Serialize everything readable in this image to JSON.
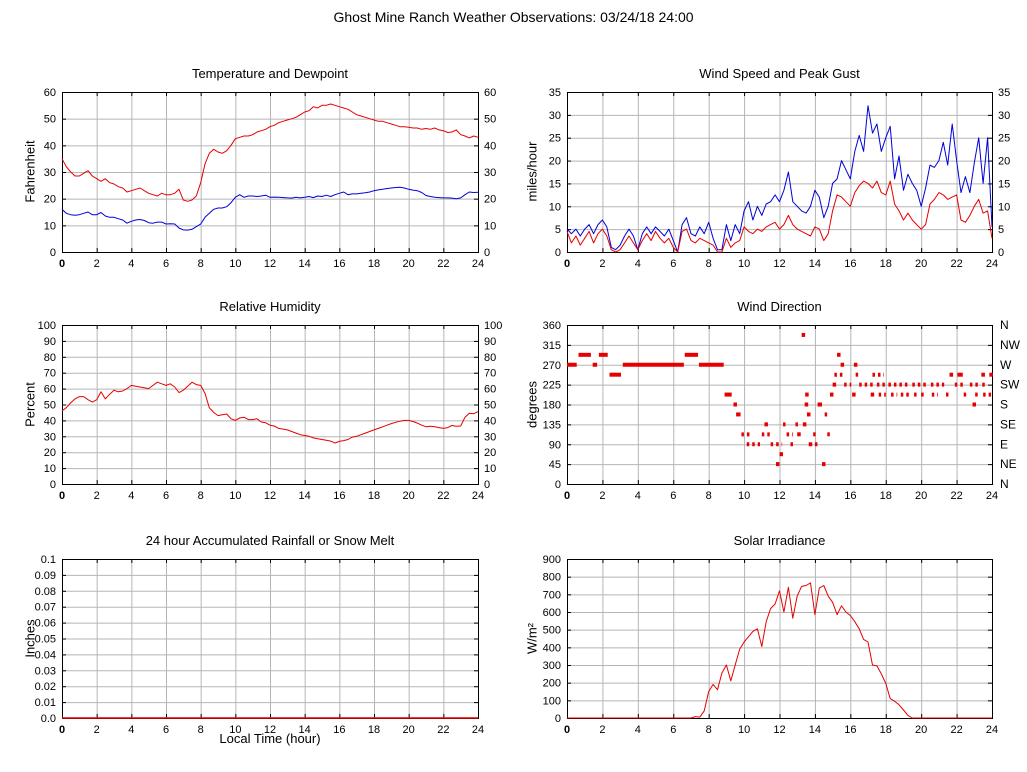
{
  "title": "Ghost Mine Ranch Weather Observations: 03/24/18 24:00",
  "colors": {
    "red": "#e60000",
    "blue": "#0000dd",
    "grid": "#b5b5b5",
    "frame": "#000000"
  },
  "x_axis": {
    "lim": [
      0,
      24
    ],
    "ticks": [
      0,
      2,
      4,
      6,
      8,
      10,
      12,
      14,
      16,
      18,
      20,
      22,
      24
    ]
  },
  "chart_data": [
    {
      "id": "temperature-dewpoint",
      "type": "line",
      "title": "Temperature and Dewpoint",
      "ylabel": "Fahrenheit",
      "ylim": [
        0,
        60
      ],
      "yticks": [
        0,
        10,
        20,
        30,
        40,
        50,
        60
      ],
      "mirror": true,
      "series": [
        {
          "name": "temperature",
          "color": "#e60000",
          "x0": 0,
          "dx": 0.25,
          "values": [
            35,
            32,
            30,
            28.5,
            28.5,
            29.5,
            30.5,
            28.5,
            27.5,
            26.5,
            27.5,
            26,
            25.5,
            24.5,
            24,
            22.5,
            23,
            23.5,
            24,
            23,
            22,
            21.5,
            21,
            22,
            21.5,
            21.5,
            22,
            23.5,
            19.5,
            19,
            19.5,
            21,
            26,
            33,
            37,
            38.5,
            37.5,
            37,
            38,
            40,
            42.5,
            43,
            43.5,
            43.5,
            44,
            45,
            45.5,
            46,
            47,
            47.5,
            48.5,
            49,
            49.5,
            50,
            50.5,
            51.5,
            52.5,
            53,
            54.5,
            54,
            55,
            55,
            55.5,
            55,
            54.5,
            54,
            53.5,
            52.5,
            51.5,
            51,
            50.5,
            50,
            49.5,
            49,
            49,
            48.5,
            48,
            47.5,
            47,
            47,
            46.8,
            46.5,
            46.5,
            46,
            46.3,
            46,
            46.5,
            45.8,
            45.5,
            44.8,
            45,
            45.8,
            44,
            43.5,
            42.8,
            43.5,
            43
          ]
        },
        {
          "name": "dewpoint",
          "color": "#0000dd",
          "x0": 0,
          "dx": 0.25,
          "values": [
            16,
            14.5,
            14,
            13.8,
            14,
            14.5,
            15,
            14,
            14,
            14.8,
            13.5,
            13,
            13,
            12.5,
            12,
            10.8,
            11.5,
            12,
            12.2,
            11.8,
            11,
            10.8,
            11.2,
            11.2,
            10.5,
            10.6,
            10.5,
            9,
            8.3,
            8.2,
            8.5,
            9.5,
            10.5,
            13,
            14.5,
            16,
            16.5,
            16.5,
            17,
            18.5,
            20.5,
            21.5,
            20.5,
            21,
            21,
            20.8,
            21,
            21.3,
            20.5,
            20.6,
            20.5,
            20.4,
            20.3,
            20.2,
            20.5,
            20.3,
            20.5,
            20.8,
            20.4,
            21,
            20.8,
            21.3,
            20.8,
            21.5,
            22,
            22.5,
            21.5,
            21.8,
            21.8,
            22,
            22.2,
            22.5,
            23,
            23.3,
            23.5,
            23.8,
            24,
            24.2,
            24.3,
            24,
            23.5,
            23.2,
            23,
            22.3,
            21.2,
            20.8,
            20.5,
            20.4,
            20.3,
            20.3,
            20.2,
            20,
            20.3,
            21.5,
            22.5,
            22.3,
            22.4
          ]
        }
      ]
    },
    {
      "id": "wind-speed-gust",
      "type": "line",
      "title": "Wind Speed and Peak Gust",
      "ylabel": "miles/hour",
      "ylim": [
        0,
        35
      ],
      "yticks": [
        0,
        5,
        10,
        15,
        20,
        25,
        30,
        35
      ],
      "mirror": true,
      "series": [
        {
          "name": "peak-gust",
          "color": "#0000dd",
          "x0": 0,
          "dx": 0.25,
          "values": [
            5,
            4,
            5,
            3.5,
            5,
            6,
            4,
            6,
            7,
            5.5,
            1,
            0.5,
            1.5,
            3.5,
            5,
            3.5,
            0.5,
            4,
            5.5,
            4,
            5.5,
            4.5,
            3.5,
            5,
            2.5,
            0,
            6,
            7.5,
            4,
            3.5,
            5.5,
            4,
            6.5,
            3,
            0.5,
            0.5,
            6,
            2.5,
            6,
            4,
            9,
            11,
            7,
            10,
            8,
            10.5,
            11,
            12.5,
            11,
            13.5,
            17.5,
            11,
            10,
            9,
            8.5,
            10,
            13.5,
            12,
            7.5,
            10,
            15,
            16,
            20,
            18,
            16,
            22,
            25.5,
            22,
            32,
            26,
            28,
            22,
            25,
            27.5,
            16,
            21,
            13.5,
            17,
            15,
            13.5,
            10,
            14,
            19,
            18.5,
            20,
            24,
            19,
            28,
            20,
            13,
            16.5,
            13,
            19.5,
            25,
            15,
            25,
            5.5
          ]
        },
        {
          "name": "wind-speed",
          "color": "#e60000",
          "x0": 0,
          "dx": 0.25,
          "values": [
            4.5,
            2,
            3.5,
            1.5,
            3,
            4.5,
            2,
            4,
            5,
            3.5,
            0.5,
            0,
            0.5,
            2,
            3.5,
            2,
            0.5,
            2.5,
            4,
            2.5,
            4.5,
            3,
            2,
            3,
            1,
            0,
            4.5,
            5,
            2.5,
            2,
            3,
            2.5,
            2,
            1.5,
            0,
            0,
            3,
            1,
            2,
            2.5,
            5.5,
            4.5,
            4,
            5,
            4.5,
            5.5,
            6,
            6.5,
            5,
            6,
            8,
            6,
            5,
            4.5,
            4,
            3.5,
            5.5,
            5,
            2.5,
            4,
            9,
            12.5,
            12,
            11,
            10,
            13,
            14.5,
            15.5,
            15,
            14,
            15.5,
            13,
            12.5,
            15.5,
            10.5,
            9,
            7,
            8.5,
            7,
            6,
            5,
            6,
            10.5,
            11.5,
            13,
            12.5,
            11.5,
            12,
            12.5,
            7,
            6.5,
            8,
            10,
            11.5,
            8.5,
            9,
            3
          ]
        }
      ]
    },
    {
      "id": "relative-humidity",
      "type": "line",
      "title": "Relative Humidity",
      "ylabel": "Percent",
      "ylim": [
        0,
        100
      ],
      "yticks": [
        0,
        10,
        20,
        30,
        40,
        50,
        60,
        70,
        80,
        90,
        100
      ],
      "mirror": true,
      "series": [
        {
          "name": "humidity",
          "color": "#e60000",
          "x0": 0,
          "dx": 0.25,
          "values": [
            46,
            48,
            51,
            53.5,
            55,
            55,
            53,
            51.5,
            53,
            58,
            53.5,
            56.5,
            59,
            58,
            58.5,
            60,
            62,
            61.5,
            61,
            60.5,
            60,
            62,
            64,
            63,
            62,
            63,
            61,
            57.5,
            59,
            61.5,
            64,
            62.5,
            62,
            57,
            48,
            45,
            43,
            43.5,
            44,
            41,
            40,
            41.5,
            42,
            40.5,
            40.5,
            41,
            39,
            38.5,
            37,
            36.5,
            35,
            34.5,
            34,
            33,
            32,
            31,
            30.5,
            30,
            29,
            28.5,
            28,
            27.5,
            27,
            25.8,
            26.8,
            27.3,
            28,
            29.5,
            30,
            31,
            32,
            33,
            34,
            35,
            36,
            37,
            38,
            38.8,
            39.5,
            40,
            40,
            39.3,
            38.3,
            37,
            36,
            36.3,
            36,
            35.5,
            35,
            35.5,
            36.8,
            36.3,
            36.5,
            42,
            44.5,
            44.2,
            45.5
          ]
        }
      ]
    },
    {
      "id": "wind-direction",
      "type": "scatter",
      "title": "Wind Direction",
      "ylabel": "degrees",
      "ylim": [
        0,
        360
      ],
      "yticks": [
        0,
        45,
        90,
        135,
        180,
        225,
        270,
        315,
        360
      ],
      "right_labels": [
        "N",
        "NE",
        "E",
        "SE",
        "S",
        "SW",
        "W",
        "NW",
        "N"
      ],
      "mirror": false,
      "marker_color": "#e60000",
      "runs": [
        [
          0.0,
          0.55,
          270
        ],
        [
          0.65,
          1.35,
          292.5
        ],
        [
          1.45,
          1.7,
          270
        ],
        [
          1.8,
          2.3,
          292.5
        ],
        [
          2.4,
          3.05,
          247.5
        ],
        [
          3.15,
          6.6,
          270
        ],
        [
          6.65,
          7.4,
          292.5
        ],
        [
          7.45,
          8.85,
          270
        ],
        [
          8.9,
          9.3,
          202.5
        ],
        [
          9.4,
          9.45,
          180
        ],
        [
          9.55,
          9.8,
          157.5
        ],
        [
          9.85,
          10.45,
          112.5,
          1
        ],
        [
          10.15,
          10.9,
          90,
          1
        ],
        [
          11.0,
          11.45,
          112.5,
          1
        ],
        [
          11.15,
          11.2,
          135
        ],
        [
          11.5,
          12.15,
          90,
          1
        ],
        [
          11.8,
          11.83,
          45
        ],
        [
          12.0,
          12.03,
          67.5
        ],
        [
          12.2,
          12.5,
          135,
          1
        ],
        [
          12.4,
          12.75,
          112.5,
          1
        ],
        [
          12.62,
          12.85,
          90,
          1
        ],
        [
          12.9,
          13.2,
          135,
          1
        ],
        [
          13.0,
          13.12,
          112.5
        ],
        [
          13.25,
          13.28,
          337.5
        ],
        [
          13.32,
          13.5,
          135
        ],
        [
          13.42,
          13.62,
          180
        ],
        [
          13.45,
          13.48,
          202.5
        ],
        [
          13.55,
          13.7,
          157.5
        ],
        [
          13.65,
          13.68,
          90
        ],
        [
          13.9,
          14.12,
          112.5,
          1
        ],
        [
          14.0,
          14.22,
          90,
          1
        ],
        [
          14.15,
          14.4,
          180
        ],
        [
          14.4,
          14.5,
          45
        ],
        [
          14.55,
          14.72,
          157.5,
          1
        ],
        [
          14.7,
          14.9,
          112.5,
          1
        ],
        [
          14.85,
          14.88,
          202.5
        ],
        [
          15.0,
          15.03,
          225
        ],
        [
          15.1,
          15.6,
          247.5,
          1
        ],
        [
          15.25,
          15.28,
          292.5
        ],
        [
          15.45,
          15.48,
          270
        ],
        [
          15.65,
          16.05,
          225,
          1
        ],
        [
          16.1,
          16.13,
          202.5
        ],
        [
          16.2,
          16.23,
          270
        ],
        [
          16.3,
          16.6,
          247.5,
          1
        ],
        [
          16.5,
          17.4,
          225,
          1
        ],
        [
          17.15,
          17.18,
          202.5
        ],
        [
          17.25,
          17.9,
          247.5,
          1
        ],
        [
          17.5,
          18.05,
          225,
          1
        ],
        [
          17.6,
          18.0,
          202.5,
          1
        ],
        [
          18.15,
          19.3,
          225,
          1
        ],
        [
          18.3,
          18.65,
          202.5,
          1
        ],
        [
          18.85,
          19.3,
          202.5,
          1
        ],
        [
          19.5,
          20.4,
          225,
          1
        ],
        [
          19.6,
          19.9,
          202.5,
          1
        ],
        [
          20.0,
          20.3,
          202.5,
          1
        ],
        [
          20.55,
          21.3,
          225,
          1
        ],
        [
          20.6,
          20.95,
          202.5,
          1
        ],
        [
          21.4,
          21.7,
          202.5,
          1
        ],
        [
          21.6,
          21.8,
          247.5
        ],
        [
          21.9,
          22.5,
          225,
          1
        ],
        [
          22.05,
          22.35,
          247.5
        ],
        [
          22.4,
          22.7,
          202.5,
          1
        ],
        [
          22.75,
          23.3,
          225,
          1
        ],
        [
          22.9,
          23.0,
          180
        ],
        [
          23.05,
          23.3,
          202.5,
          1
        ],
        [
          23.4,
          23.6,
          247.5
        ],
        [
          23.45,
          23.75,
          225,
          1
        ],
        [
          23.5,
          23.95,
          202.5,
          1
        ],
        [
          23.85,
          24.0,
          247.5
        ]
      ]
    },
    {
      "id": "rainfall",
      "type": "line",
      "title": "24 hour Accumulated Rainfall or Snow Melt",
      "ylabel": "Inches",
      "xlabel": "Local Time (hour)",
      "ylim": [
        0,
        0.1
      ],
      "yticks": [
        0,
        0.01,
        0.02,
        0.03,
        0.04,
        0.05,
        0.06,
        0.07,
        0.08,
        0.09,
        0.1
      ],
      "ytick_labels": [
        "0.0",
        "0.01",
        "0.02",
        "0.03",
        "0.04",
        "0.05",
        "0.06",
        "0.07",
        "0.08",
        "0.09",
        "0.1"
      ],
      "mirror": false,
      "series": [
        {
          "name": "accumulated-precip",
          "color": "#e60000",
          "constant": 0
        }
      ]
    },
    {
      "id": "solar-irradiance",
      "type": "line",
      "title": "Solar Irradiance",
      "ylabel": "W/m²",
      "ylim": [
        0,
        900
      ],
      "yticks": [
        0,
        100,
        200,
        300,
        400,
        500,
        600,
        700,
        800,
        900
      ],
      "mirror": false,
      "series": [
        {
          "name": "solar",
          "color": "#e60000",
          "x0": 0,
          "dx": 0.25,
          "values": [
            0,
            0,
            0,
            0,
            0,
            0,
            0,
            0,
            0,
            0,
            0,
            0,
            0,
            0,
            0,
            0,
            0,
            0,
            0,
            0,
            0,
            0,
            0,
            0,
            0,
            0,
            0,
            0,
            0,
            8,
            5,
            40,
            150,
            190,
            160,
            255,
            300,
            210,
            300,
            390,
            430,
            460,
            490,
            505,
            405,
            545,
            620,
            645,
            720,
            600,
            740,
            565,
            690,
            745,
            750,
            765,
            585,
            735,
            750,
            690,
            655,
            585,
            635,
            600,
            580,
            545,
            505,
            445,
            430,
            300,
            295,
            250,
            195,
            110,
            95,
            75,
            45,
            15,
            0,
            0,
            0,
            0,
            0,
            0,
            0,
            0,
            0,
            0,
            0,
            0,
            0,
            0,
            0,
            0,
            0,
            0,
            0
          ]
        }
      ]
    }
  ]
}
